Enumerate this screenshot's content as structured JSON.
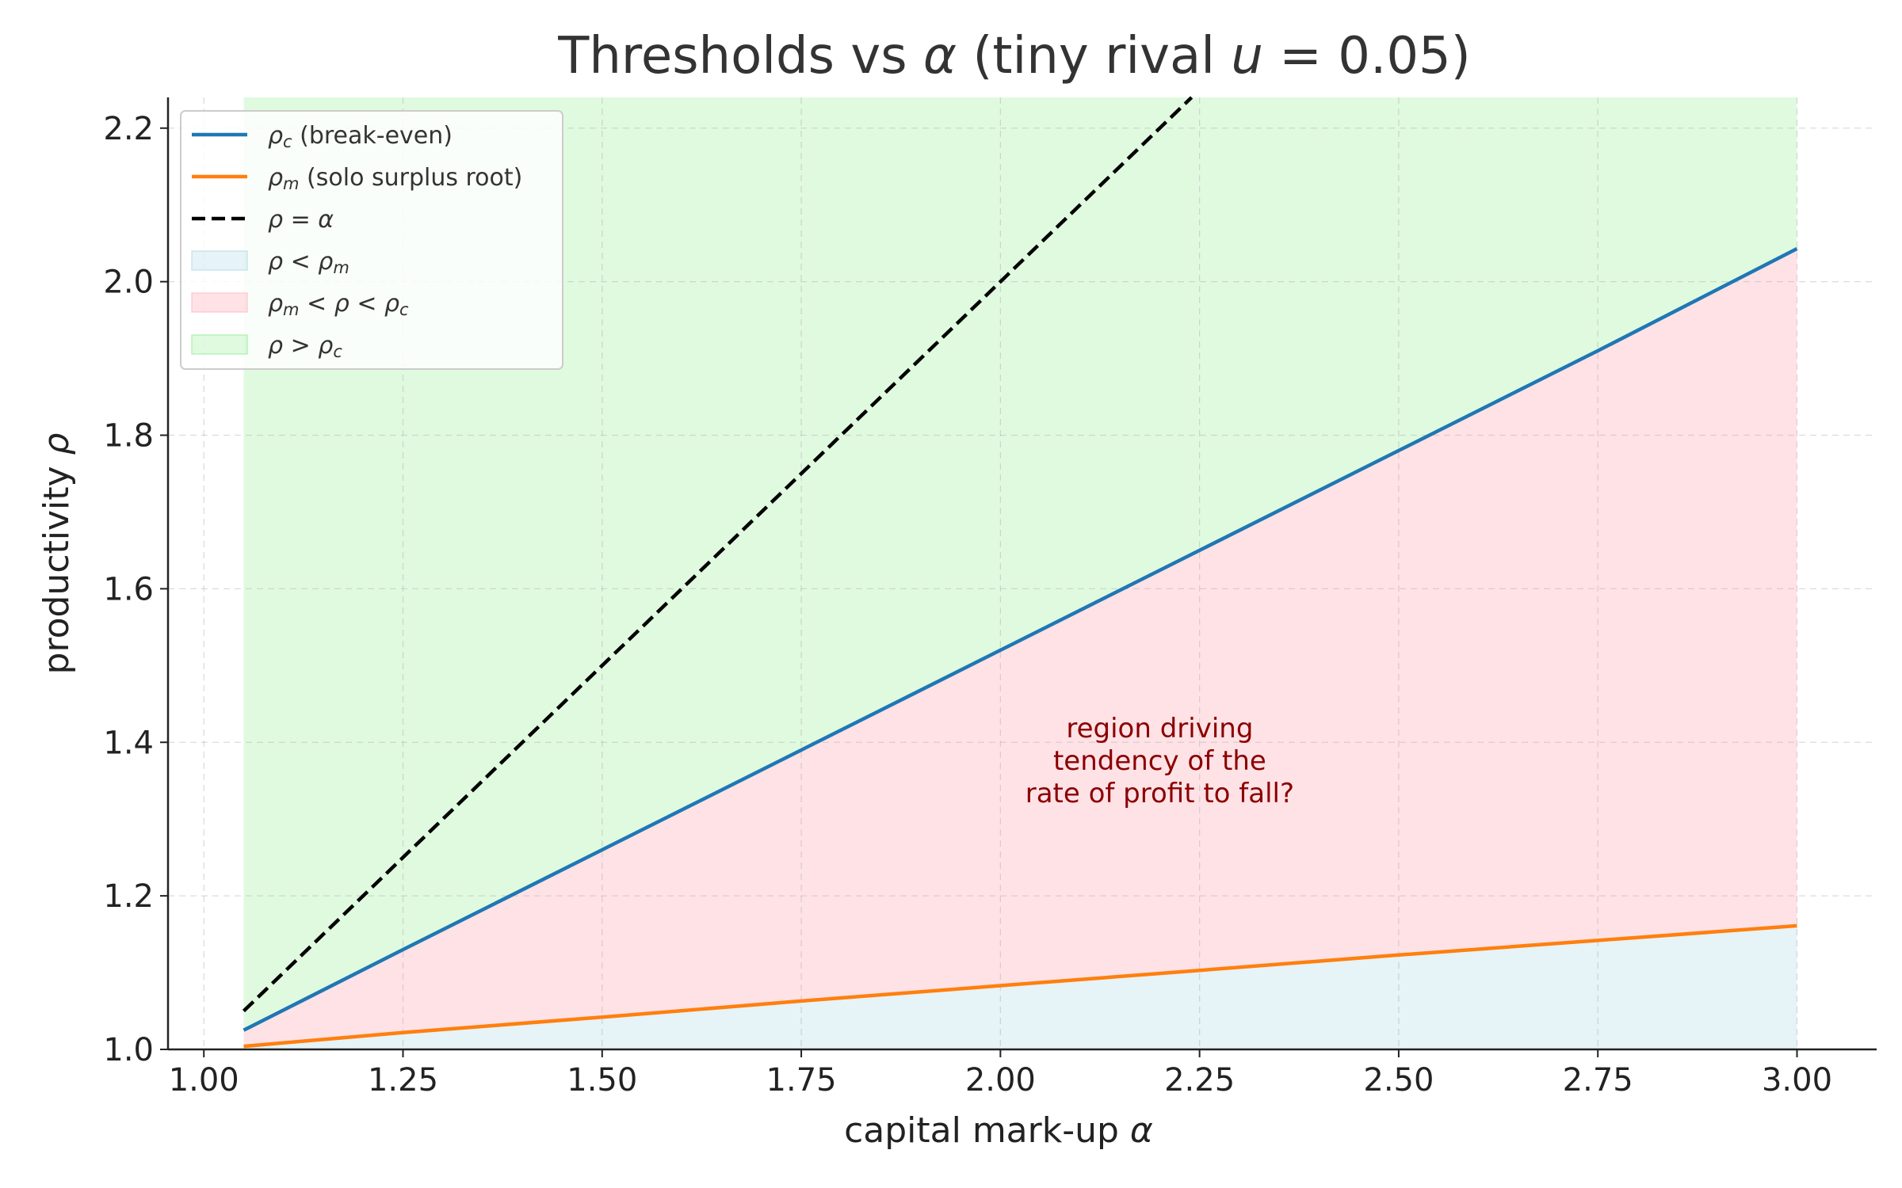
{
  "chart_data": {
    "type": "line",
    "title_parts": [
      "Thresholds vs ",
      "α",
      " (tiny rival ",
      "u",
      " = 0.05)"
    ],
    "xlabel_parts": [
      "capital mark-up ",
      "α"
    ],
    "ylabel_parts": [
      "productivity ",
      "ρ"
    ],
    "xlim": [
      0.955,
      3.1
    ],
    "ylim": [
      1.0,
      2.24
    ],
    "xticks": [
      1.0,
      1.25,
      1.5,
      1.75,
      2.0,
      2.25,
      2.5,
      2.75,
      3.0
    ],
    "xtick_labels": [
      "1.00",
      "1.25",
      "1.50",
      "1.75",
      "2.00",
      "2.25",
      "2.50",
      "2.75",
      "3.00"
    ],
    "yticks": [
      1.0,
      1.2,
      1.4,
      1.6,
      1.8,
      2.0,
      2.2
    ],
    "ytick_labels": [
      "1.0",
      "1.2",
      "1.4",
      "1.6",
      "1.8",
      "2.0",
      "2.2"
    ],
    "grid": true,
    "legend_position": "top-left",
    "x": [
      1.05,
      1.25,
      1.5,
      1.75,
      2.0,
      2.25,
      2.5,
      2.75,
      3.0
    ],
    "series": [
      {
        "key": "rho_c",
        "style": "solid",
        "color": "#1f77b4",
        "values": [
          1.025,
          1.13,
          1.26,
          1.39,
          1.52,
          1.65,
          1.78,
          1.91,
          2.043
        ]
      },
      {
        "key": "rho_m",
        "style": "solid",
        "color": "#ff7f0e",
        "values": [
          1.004,
          1.022,
          1.042,
          1.063,
          1.083,
          1.103,
          1.123,
          1.142,
          1.161
        ]
      },
      {
        "key": "rho_eq_alpha",
        "style": "dashed",
        "color": "#000000",
        "x": [
          1.05,
          2.24
        ],
        "values": [
          1.05,
          2.24
        ]
      }
    ],
    "regions": [
      {
        "key": "below_m",
        "color": "#add8e6",
        "opacity": 0.3
      },
      {
        "key": "between",
        "color": "#ffb6c1",
        "opacity": 0.4
      },
      {
        "key": "above_c",
        "color": "#90ee90",
        "opacity": 0.28
      }
    ],
    "legend": [
      {
        "type": "line",
        "color": "#1f77b4",
        "parts": [
          [
            "ρ",
            "i"
          ],
          [
            "c",
            "si"
          ],
          [
            " (break-even)",
            ""
          ]
        ]
      },
      {
        "type": "line",
        "color": "#ff7f0e",
        "parts": [
          [
            "ρ",
            "i"
          ],
          [
            "m",
            "si"
          ],
          [
            " (solo surplus root)",
            ""
          ]
        ]
      },
      {
        "type": "dash",
        "color": "#000000",
        "parts": [
          [
            "ρ",
            "i"
          ],
          [
            " = ",
            ""
          ],
          [
            "α",
            "i"
          ]
        ]
      },
      {
        "type": "patch",
        "color": "#add8e6",
        "opacity": 0.3,
        "parts": [
          [
            "ρ",
            "i"
          ],
          [
            " < ",
            ""
          ],
          [
            "ρ",
            "i"
          ],
          [
            "m",
            "si"
          ]
        ]
      },
      {
        "type": "patch",
        "color": "#ffb6c1",
        "opacity": 0.4,
        "parts": [
          [
            "ρ",
            "i"
          ],
          [
            "m",
            "si"
          ],
          [
            " < ",
            ""
          ],
          [
            "ρ",
            "i"
          ],
          [
            " < ",
            ""
          ],
          [
            "ρ",
            "i"
          ],
          [
            "c",
            "si"
          ]
        ]
      },
      {
        "type": "patch",
        "color": "#90ee90",
        "opacity": 0.28,
        "parts": [
          [
            "ρ",
            "i"
          ],
          [
            " > ",
            ""
          ],
          [
            "ρ",
            "i"
          ],
          [
            "c",
            "si"
          ]
        ]
      }
    ],
    "annotation": {
      "lines": [
        "region driving",
        "tendency of the",
        "rate of profit to fall?"
      ],
      "x": 2.2,
      "y": 1.36,
      "color": "#8b0000"
    }
  }
}
